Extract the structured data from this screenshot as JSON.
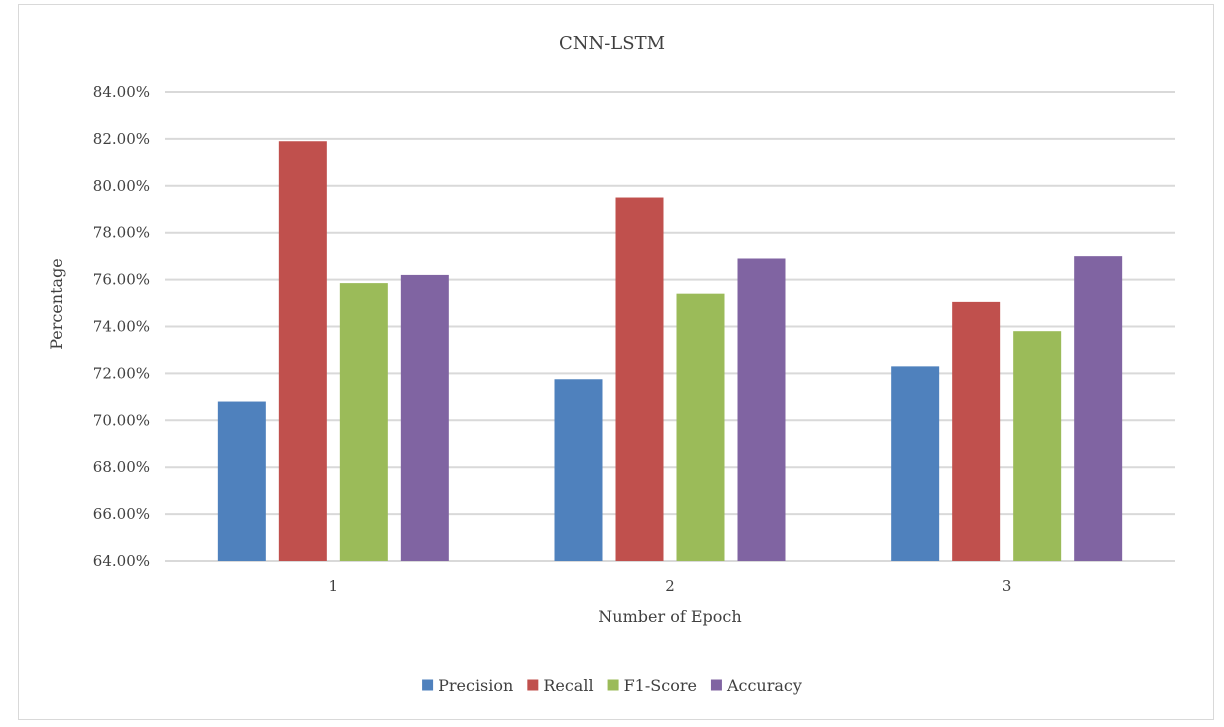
{
  "chart_data": {
    "type": "bar",
    "title": "CNN-LSTM",
    "xlabel": "Number of Epoch",
    "ylabel": "Percentage",
    "categories": [
      "1",
      "2",
      "3"
    ],
    "series": [
      {
        "name": "Precision",
        "color": "#4F81BD",
        "values": [
          70.8,
          71.75,
          72.3
        ]
      },
      {
        "name": "Recall",
        "color": "#C0504D",
        "values": [
          81.9,
          79.5,
          75.05
        ]
      },
      {
        "name": "F1-Score",
        "color": "#9BBB59",
        "values": [
          75.85,
          75.4,
          73.8
        ]
      },
      {
        "name": "Accuracy",
        "color": "#8064A2",
        "values": [
          76.2,
          76.9,
          77.0
        ]
      }
    ],
    "ylim": [
      64,
      84
    ],
    "ytick_step": 2,
    "ytick_labels": [
      "64.00%",
      "66.00%",
      "68.00%",
      "70.00%",
      "72.00%",
      "74.00%",
      "76.00%",
      "78.00%",
      "80.00%",
      "82.00%",
      "84.00%"
    ],
    "grid": true,
    "legend_position": "bottom"
  }
}
